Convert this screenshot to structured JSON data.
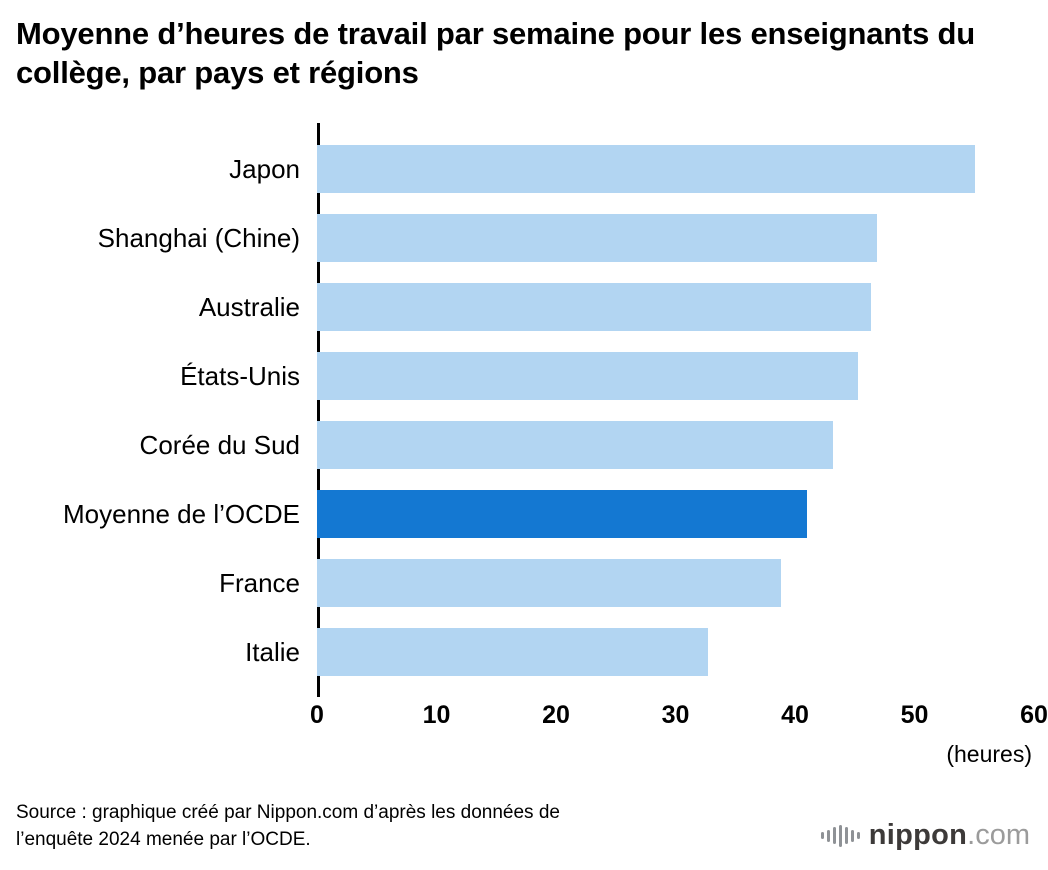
{
  "title": "Moyenne d’heures de travail par semaine pour les enseignants du collège, par pays et régions",
  "chart_data": {
    "type": "bar",
    "orientation": "horizontal",
    "title": "Moyenne d’heures de travail par semaine pour les enseignants du collège, par pays et régions",
    "categories": [
      "Japon",
      "Shanghai (Chine)",
      "Australie",
      "États-Unis",
      "Corée du Sud",
      "Moyenne de l’OCDE",
      "France",
      "Italie"
    ],
    "values": [
      55.1,
      46.9,
      46.4,
      45.3,
      43.2,
      41.0,
      38.8,
      32.7
    ],
    "highlight_index": 5,
    "highlight_category": "Moyenne de l’OCDE",
    "xlim": [
      0,
      60
    ],
    "x_ticks": [
      0,
      10,
      20,
      30,
      40,
      50,
      60
    ],
    "x_unit_label": "(heures)",
    "xlabel": "(heures)",
    "ylabel": "",
    "grid": false,
    "legend": "none",
    "bar_color": "#b2d5f2",
    "highlight_color": "#1478d2",
    "axis_line_color": "#000000"
  },
  "source": {
    "line1": "Source : graphique créé par Nippon.com d’après les données de",
    "line2": "l’enquête 2024 menée par l’OCDE."
  },
  "logo": {
    "icon": "soundwave-bars-icon",
    "name": "nippon",
    "tld": ".com"
  }
}
